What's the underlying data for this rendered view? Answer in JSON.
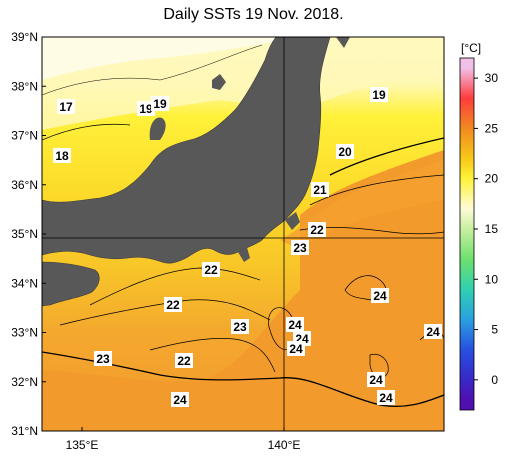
{
  "title": "Daily SSTs 19 Nov. 2018.",
  "colorbar": {
    "unit": "[°C]",
    "ticks": [
      "30",
      "25",
      "20",
      "15",
      "10",
      "5",
      "0"
    ],
    "stops": [
      {
        "t": 31,
        "color": "#f0c0e8"
      },
      {
        "t": 28,
        "color": "#ff3c3c"
      },
      {
        "t": 25,
        "color": "#f08a20"
      },
      {
        "t": 22,
        "color": "#f8c818"
      },
      {
        "t": 20,
        "color": "#fff23a"
      },
      {
        "t": 17,
        "color": "#fffbd8"
      },
      {
        "t": 15,
        "color": "#c8f0a0"
      },
      {
        "t": 12,
        "color": "#6ee06e"
      },
      {
        "t": 9,
        "color": "#30d0b0"
      },
      {
        "t": 6,
        "color": "#2aa0e0"
      },
      {
        "t": 3,
        "color": "#2850e0"
      },
      {
        "t": 0,
        "color": "#3828c8"
      },
      {
        "t": -2,
        "color": "#5010b0"
      }
    ]
  },
  "axes": {
    "lat_labels": [
      "39°N",
      "38°N",
      "37°N",
      "36°N",
      "35°N",
      "34°N",
      "33°N",
      "32°N",
      "31°N"
    ],
    "lon_labels": [
      "135°E",
      "140°E"
    ]
  },
  "contour_labels": [
    "17",
    "19",
    "19",
    "18",
    "19",
    "20",
    "21",
    "22",
    "23",
    "22",
    "22",
    "23",
    "24",
    "24",
    "24",
    "24",
    "24",
    "23",
    "22",
    "24",
    "24",
    "24"
  ],
  "colors": {
    "land": "#585858",
    "ocean_warm": "#f29a2c",
    "ocean_mid": "#f8c628",
    "ocean_cool": "#fff13a",
    "ocean_cold": "#fffbe0"
  }
}
